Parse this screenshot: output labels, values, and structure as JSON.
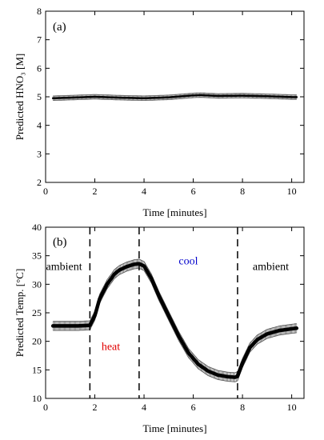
{
  "chart_data": [
    {
      "type": "line",
      "panel_label": "(a)",
      "xlabel": "Time [minutes]",
      "ylabel": "Predicted HNO₃ [M]",
      "xlim": [
        0,
        10.5
      ],
      "ylim": [
        2,
        8
      ],
      "xticks": [
        0,
        2,
        4,
        6,
        8,
        10
      ],
      "yticks": [
        2,
        3,
        4,
        5,
        6,
        7,
        8
      ],
      "grid": false,
      "error_band": 0.08,
      "x": [
        0.3,
        1.0,
        2.0,
        3.0,
        4.0,
        5.0,
        6.0,
        6.3,
        7.0,
        8.0,
        9.0,
        10.0,
        10.2
      ],
      "y": [
        4.95,
        4.97,
        5.0,
        4.97,
        4.95,
        4.98,
        5.05,
        5.06,
        5.03,
        5.04,
        5.02,
        4.99,
        4.99
      ]
    },
    {
      "type": "line",
      "panel_label": "(b)",
      "xlabel": "Time [minutes]",
      "ylabel": "Predicted Temp. [°C]",
      "xlim": [
        0,
        10.5
      ],
      "ylim": [
        10,
        40
      ],
      "xticks": [
        0,
        2,
        4,
        6,
        8,
        10
      ],
      "yticks": [
        10,
        15,
        20,
        25,
        30,
        35,
        40
      ],
      "grid": false,
      "error_band": 0.8,
      "vlines": [
        1.8,
        3.8,
        7.8
      ],
      "annotations": [
        {
          "text": "ambient",
          "x": 0.75,
          "y": 32.5,
          "color": "#000000"
        },
        {
          "text": "heat",
          "x": 2.65,
          "y": 18.5,
          "color": "#e00000"
        },
        {
          "text": "cool",
          "x": 5.8,
          "y": 33.5,
          "color": "#0000cc"
        },
        {
          "text": "ambient",
          "x": 9.15,
          "y": 32.5,
          "color": "#000000"
        }
      ],
      "x": [
        0.3,
        0.8,
        1.3,
        1.8,
        2.0,
        2.2,
        2.5,
        2.8,
        3.0,
        3.3,
        3.6,
        3.8,
        4.0,
        4.3,
        4.6,
        5.0,
        5.4,
        5.8,
        6.2,
        6.6,
        7.0,
        7.4,
        7.7,
        7.8,
        8.0,
        8.3,
        8.6,
        9.0,
        9.5,
        10.0,
        10.2
      ],
      "y": [
        22.7,
        22.7,
        22.7,
        22.8,
        24.5,
        27.5,
        30.0,
        31.8,
        32.5,
        33.1,
        33.5,
        33.6,
        33.2,
        31.0,
        28.0,
        24.5,
        21.0,
        18.0,
        16.0,
        14.8,
        14.1,
        13.8,
        13.7,
        13.9,
        16.2,
        18.9,
        20.3,
        21.3,
        21.9,
        22.2,
        22.3
      ]
    }
  ]
}
